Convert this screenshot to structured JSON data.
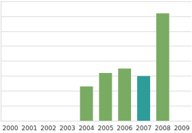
{
  "chart_data": {
    "type": "bar",
    "categories": [
      "2000",
      "2001",
      "2002",
      "2003",
      "2004",
      "2005",
      "2006",
      "2007",
      "2008",
      "2009"
    ],
    "values": [
      null,
      null,
      null,
      null,
      2.3,
      3.2,
      3.5,
      3.0,
      7.2,
      null
    ],
    "colors": [
      "#7aab62",
      "#7aab62",
      "#7aab62",
      "#7aab62",
      "#7aab62",
      "#7aab62",
      "#7aab62",
      "#2e9c98",
      "#7aab62",
      "#7aab62"
    ],
    "ylim": [
      0,
      8
    ],
    "yticks": [
      0,
      1,
      2,
      3,
      4,
      5,
      6,
      7,
      8
    ],
    "grid": true,
    "tick_labels": "x"
  }
}
